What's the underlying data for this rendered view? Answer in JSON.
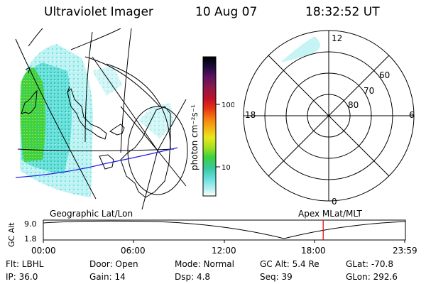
{
  "header": {
    "instrument": "Ultraviolet Imager",
    "date": "10 Aug 07",
    "time": "18:32:52 UT"
  },
  "colorbar": {
    "label": "photon cm⁻²s⁻¹",
    "ticks": [
      "100",
      "10"
    ],
    "colors": [
      "#000000",
      "#1a0a3a",
      "#5a1160",
      "#8b1a4a",
      "#c0102a",
      "#e53212",
      "#f57a10",
      "#f5b014",
      "#e8e81e",
      "#a8e020",
      "#3cd23c",
      "#38c8a0",
      "#6ae0e0",
      "#b8f0f0",
      "#ffffff"
    ]
  },
  "polar": {
    "mlt_labels": {
      "top": "12",
      "right": "6",
      "bottom": "0",
      "left": "18"
    },
    "lat_labels": [
      "60",
      "70",
      "80"
    ]
  },
  "timeline": {
    "left_title": "Geographic Lat/Lon",
    "right_title": "Apex MLat/MLT",
    "ylabel": "GC Alt",
    "ymax": "9.0",
    "ymin": "1.8",
    "xticks": [
      "00:00",
      "06:00",
      "12:00",
      "18:00",
      "23:59"
    ],
    "marker_time_hours": 18.55,
    "marker_color": "#e00000"
  },
  "info": {
    "flt": "Flt: LBHL",
    "ip": "IP: 36.0",
    "door": "Door: Open",
    "gain": "Gain: 14",
    "mode": "Mode: Normal",
    "dsp": "Dsp:    4.8",
    "gcalt": "GC Alt: 5.4 Re",
    "seq": "Seq: 39",
    "glat": "GLat: -70.8",
    "glon": "GLon: 292.6"
  }
}
